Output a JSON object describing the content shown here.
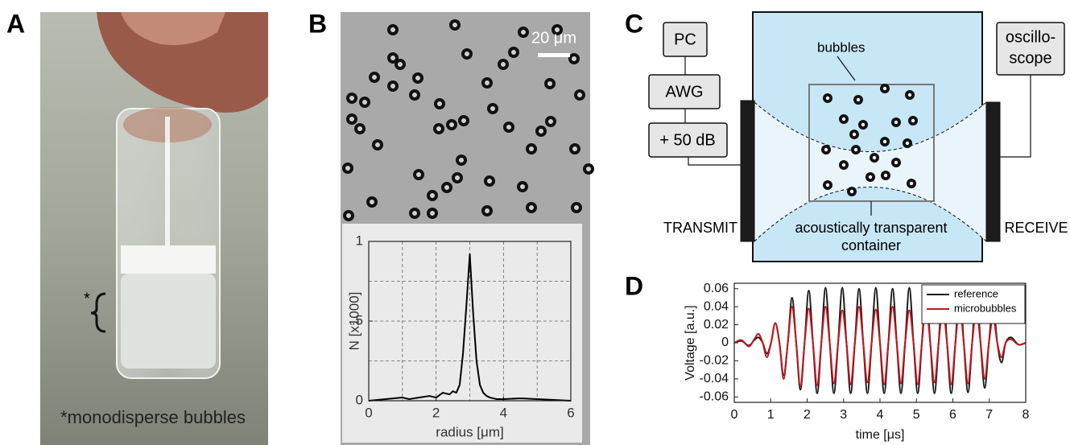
{
  "panel_labels": [
    "A",
    "B",
    "C",
    "D"
  ],
  "photo": {
    "bracket_mark": "*",
    "caption": "*monodisperse bubbles"
  },
  "micrograph": {
    "scale_bar": "20 μm"
  },
  "diagram": {
    "boxes": [
      "PC",
      "AWG",
      "+ 50 dB"
    ],
    "oscilloscope": [
      "oscillo-",
      "scope"
    ],
    "bubbles_label": "bubbles",
    "container_label": [
      "acoustically transparent",
      "container"
    ],
    "transmit": "TRANSMIT",
    "receive": "RECEIVE"
  },
  "chart_data": [
    {
      "type": "line",
      "xlabel": "radius [μm]",
      "ylabel": "N [x1000]",
      "x": [
        0,
        0.5,
        1,
        1.2,
        1.5,
        1.8,
        2,
        2.2,
        2.4,
        2.5,
        2.6,
        2.7,
        2.8,
        2.9,
        3.0,
        3.1,
        3.2,
        3.3,
        3.4,
        3.5,
        3.6,
        3.8,
        4,
        4.5,
        5,
        5.5,
        6
      ],
      "series": [
        {
          "color": "#000000",
          "values": [
            0,
            0.01,
            0.02,
            0.01,
            0.02,
            0.03,
            0.02,
            0.05,
            0.04,
            0.06,
            0.05,
            0.1,
            0.3,
            0.6,
            0.92,
            0.55,
            0.25,
            0.1,
            0.05,
            0.03,
            0.02,
            0.01,
            0.01,
            0.015,
            0.01,
            0.005,
            0
          ]
        }
      ],
      "xlim": [
        0,
        6
      ],
      "ylim": [
        0,
        1
      ],
      "xticks": [
        0,
        2,
        4,
        6
      ],
      "yticks": [
        0,
        {
          "value": 0.5,
          "label": ".5"
        },
        1
      ],
      "xgrid": [
        1,
        2,
        3,
        4,
        5
      ],
      "ygrid": [
        0.25,
        0.5,
        0.75
      ]
    },
    {
      "type": "line",
      "xlabel": "time [μs]",
      "ylabel": "Voltage [a.u.]",
      "x": [
        0,
        0.2,
        0.4,
        0.55,
        0.665,
        0.78,
        0.895,
        1.01,
        1.125,
        1.24,
        1.355,
        1.47,
        1.585,
        1.7,
        1.815,
        1.93,
        2.045,
        2.16,
        2.275,
        2.39,
        2.505,
        2.62,
        2.735,
        2.85,
        2.965,
        3.08,
        3.195,
        3.31,
        3.425,
        3.54,
        3.655,
        3.77,
        3.885,
        4.0,
        4.115,
        4.23,
        4.345,
        4.46,
        4.575,
        4.69,
        4.805,
        4.92,
        5.035,
        5.15,
        5.265,
        5.38,
        5.495,
        5.61,
        5.725,
        5.84,
        5.955,
        6.07,
        6.185,
        6.3,
        6.415,
        6.53,
        6.645,
        6.76,
        6.875,
        6.99,
        7.105,
        7.22,
        7.335,
        7.45,
        7.6,
        7.8,
        8
      ],
      "series": [
        {
          "name": "reference",
          "color": "#1a1a1a",
          "values": [
            0,
            0.002,
            -0.003,
            0.003,
            0.006,
            0,
            -0.012,
            0,
            0.022,
            0,
            -0.036,
            0,
            0.05,
            0,
            -0.052,
            0,
            0.058,
            0,
            -0.056,
            0,
            0.061,
            0,
            -0.056,
            0,
            0.061,
            0,
            -0.056,
            0,
            0.06,
            0,
            -0.056,
            0,
            0.061,
            0,
            -0.056,
            0,
            0.06,
            0,
            -0.056,
            0,
            0.061,
            0,
            -0.056,
            0,
            0.06,
            0,
            -0.056,
            0,
            0.061,
            0,
            -0.056,
            0,
            0.06,
            0,
            -0.055,
            0,
            0.058,
            0,
            -0.05,
            0,
            0.042,
            0,
            -0.022,
            0,
            0.006,
            -0.002,
            0
          ]
        },
        {
          "name": "microbubbles",
          "color": "#c0171f",
          "values": [
            0,
            0.003,
            -0.004,
            0.004,
            0.01,
            0,
            -0.016,
            0,
            0.022,
            0,
            -0.04,
            0,
            0.04,
            0,
            -0.048,
            0,
            0.038,
            0,
            -0.047,
            0,
            0.04,
            0,
            -0.045,
            0,
            0.036,
            0,
            -0.046,
            0,
            0.04,
            0,
            -0.044,
            0,
            0.037,
            0,
            -0.046,
            0,
            0.04,
            0,
            -0.045,
            0,
            0.036,
            0,
            -0.046,
            0,
            0.04,
            0,
            -0.044,
            0,
            0.037,
            0,
            -0.046,
            0,
            0.04,
            0,
            -0.045,
            0,
            0.036,
            0,
            -0.04,
            0,
            0.028,
            0,
            -0.016,
            0,
            0.004,
            -0.002,
            0
          ]
        }
      ],
      "xlim": [
        0,
        8
      ],
      "ylim": [
        -0.066,
        0.066
      ],
      "xticks": [
        0,
        1,
        2,
        3,
        4,
        5,
        6,
        7,
        8
      ],
      "yticks": [
        -0.06,
        -0.04,
        -0.02,
        0,
        0.02,
        0.04,
        0.06
      ],
      "legend": "upper right"
    }
  ]
}
